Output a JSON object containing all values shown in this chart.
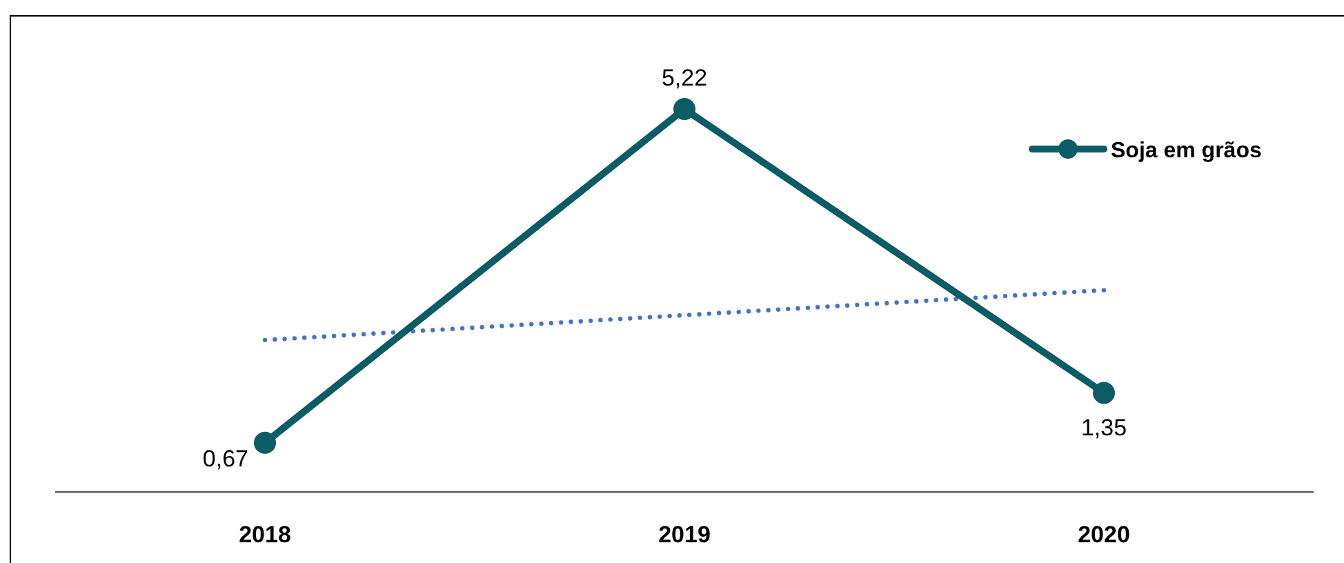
{
  "chart_data": {
    "type": "line",
    "categories": [
      "2018",
      "2019",
      "2020"
    ],
    "series": [
      {
        "name": "Soja em grãos",
        "color": "#0b5c66",
        "values": [
          0.67,
          5.22,
          1.35
        ],
        "value_labels": [
          "0,67",
          "5,22",
          "1,35"
        ],
        "marker": "circle",
        "line_style": "solid"
      },
      {
        "type": "line",
        "values": [
          2.07,
          2.41,
          2.75
        ],
        "color": "#4472c4",
        "line_style": "dotted",
        "marker": "none"
      }
    ],
    "tick_labels": "x",
    "legend": "top right"
  }
}
